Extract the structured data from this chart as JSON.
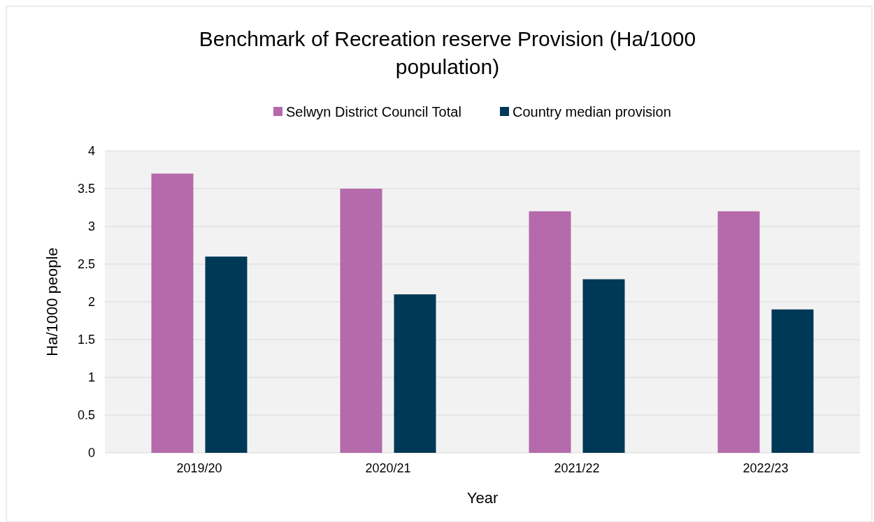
{
  "chart_data": {
    "type": "bar",
    "title": "Benchmark of Recreation reserve Provision (Ha/1000 population)",
    "xlabel": "Year",
    "ylabel": "Ha/1000 people",
    "categories": [
      "2019/20",
      "2020/21",
      "2021/22",
      "2022/23"
    ],
    "series": [
      {
        "name": "Selwyn District Council Total",
        "color": "#b46aab",
        "values": [
          3.7,
          3.5,
          3.2,
          3.2
        ]
      },
      {
        "name": "Country median provision",
        "color": "#003857",
        "values": [
          2.6,
          2.1,
          2.3,
          1.9
        ]
      }
    ],
    "ylim": [
      0,
      4
    ],
    "yticks": [
      0,
      0.5,
      1,
      1.5,
      2,
      2.5,
      3,
      3.5,
      4
    ],
    "grid": "y",
    "legend": "top"
  }
}
